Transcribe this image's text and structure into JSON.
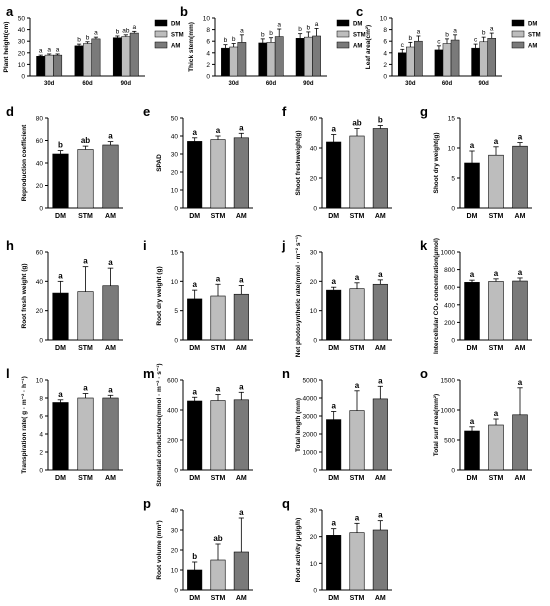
{
  "figure": {
    "colors": {
      "DM": "#000000",
      "STM": "#bdbdbd",
      "AM": "#7a7a7a",
      "errorbar": "#000000",
      "axis": "#000000"
    }
  },
  "chart_data": [
    {
      "id": "a",
      "type": "bar",
      "panel_label": "a",
      "ylabel": "Plant height(cm)",
      "ylim": [
        0,
        50
      ],
      "yticks": [
        0,
        10,
        20,
        30,
        40,
        50
      ],
      "categories": [
        "30d",
        "60d",
        "90d"
      ],
      "series": [
        {
          "name": "DM",
          "values": [
            17,
            26,
            33
          ],
          "errors": [
            1,
            1.5,
            1.5
          ],
          "letters": [
            "a",
            "b",
            "b"
          ]
        },
        {
          "name": "STM",
          "values": [
            18,
            28,
            34
          ],
          "errors": [
            1,
            1.5,
            1.5
          ],
          "letters": [
            "a",
            "b",
            "ab"
          ]
        },
        {
          "name": "AM",
          "values": [
            18,
            32,
            37
          ],
          "errors": [
            1,
            1.5,
            1.5
          ],
          "letters": [
            "a",
            "a",
            "a"
          ]
        }
      ],
      "legend": [
        "DM",
        "STM",
        "AM"
      ],
      "legend_position": "top-right"
    },
    {
      "id": "b",
      "type": "bar",
      "panel_label": "b",
      "ylabel": "Thick stem(mm)",
      "ylim": [
        0,
        10
      ],
      "yticks": [
        0,
        2,
        4,
        6,
        8,
        10
      ],
      "categories": [
        "30d",
        "60d",
        "90d"
      ],
      "series": [
        {
          "name": "DM",
          "values": [
            4.8,
            5.7,
            6.5
          ],
          "errors": [
            0.6,
            0.7,
            0.8
          ],
          "letters": [
            "b",
            "b",
            "b"
          ]
        },
        {
          "name": "STM",
          "values": [
            5.0,
            5.8,
            6.7
          ],
          "errors": [
            0.6,
            0.8,
            0.9
          ],
          "letters": [
            "b",
            "b",
            "b"
          ]
        },
        {
          "name": "AM",
          "values": [
            5.8,
            6.8,
            6.9
          ],
          "errors": [
            1.3,
            1.3,
            1.3
          ],
          "letters": [
            "a",
            "a",
            "a"
          ]
        }
      ],
      "legend": [
        "DM",
        "STM",
        "AM"
      ],
      "legend_position": "right"
    },
    {
      "id": "c",
      "type": "bar",
      "panel_label": "c",
      "ylabel": "Leaf area(cm²)",
      "ylim": [
        0,
        10
      ],
      "yticks": [
        0,
        2,
        4,
        6,
        8,
        10
      ],
      "categories": [
        "30d",
        "60d",
        "90d"
      ],
      "series": [
        {
          "name": "DM",
          "values": [
            4.0,
            4.5,
            4.8
          ],
          "errors": [
            0.6,
            0.7,
            0.7
          ],
          "letters": [
            "c",
            "c",
            "c"
          ]
        },
        {
          "name": "STM",
          "values": [
            5.0,
            5.6,
            5.9
          ],
          "errors": [
            0.8,
            0.8,
            0.8
          ],
          "letters": [
            "b",
            "b",
            "b"
          ]
        },
        {
          "name": "AM",
          "values": [
            6.0,
            6.2,
            6.5
          ],
          "errors": [
            0.9,
            0.9,
            0.9
          ],
          "letters": [
            "a",
            "a",
            "a"
          ]
        }
      ],
      "legend": [
        "DM",
        "STM",
        "AM"
      ],
      "legend_position": "right"
    },
    {
      "id": "d",
      "type": "bar",
      "panel_label": "d",
      "ylabel": "Reproduction coefficient",
      "ylim": [
        0,
        80
      ],
      "yticks": [
        0,
        20,
        40,
        60,
        80
      ],
      "categories": [
        "DM",
        "STM",
        "AM"
      ],
      "values": [
        48,
        52,
        56
      ],
      "errors": [
        3,
        3,
        3
      ],
      "letters": [
        "b",
        "ab",
        "a"
      ]
    },
    {
      "id": "e",
      "type": "bar",
      "panel_label": "e",
      "ylabel": "SPAD",
      "ylim": [
        0,
        50
      ],
      "yticks": [
        0,
        10,
        20,
        30,
        40,
        50
      ],
      "categories": [
        "DM",
        "STM",
        "AM"
      ],
      "values": [
        37,
        38,
        39
      ],
      "errors": [
        2,
        2,
        2.5
      ],
      "letters": [
        "a",
        "a",
        "a"
      ]
    },
    {
      "id": "f",
      "type": "bar",
      "panel_label": "f",
      "ylabel": "Shoot freshweight(g)",
      "ylim": [
        0,
        60
      ],
      "yticks": [
        0,
        20,
        40,
        60
      ],
      "categories": [
        "DM",
        "STM",
        "AM"
      ],
      "values": [
        44,
        48,
        53
      ],
      "errors": [
        5,
        5,
        2
      ],
      "letters": [
        "a",
        "ab",
        "b"
      ]
    },
    {
      "id": "g",
      "type": "bar",
      "panel_label": "g",
      "ylabel": "Shoot dry weight(g)",
      "ylim": [
        0,
        15
      ],
      "yticks": [
        0,
        5,
        10,
        15
      ],
      "categories": [
        "DM",
        "STM",
        "AM"
      ],
      "values": [
        7.5,
        8.8,
        10.3
      ],
      "errors": [
        2.0,
        1.4,
        0.6
      ],
      "letters": [
        "a",
        "a",
        "a"
      ]
    },
    {
      "id": "h",
      "type": "bar",
      "panel_label": "h",
      "ylabel": "Root fresh weight (g)",
      "ylim": [
        0,
        60
      ],
      "yticks": [
        0,
        20,
        40,
        60
      ],
      "categories": [
        "DM",
        "STM",
        "AM"
      ],
      "values": [
        32,
        33,
        37
      ],
      "errors": [
        8,
        17,
        12
      ],
      "letters": [
        "a",
        "a",
        "a"
      ]
    },
    {
      "id": "i",
      "type": "bar",
      "panel_label": "i",
      "ylabel": "Root dry weight (g)",
      "ylim": [
        0,
        15
      ],
      "yticks": [
        0,
        5,
        10,
        15
      ],
      "categories": [
        "DM",
        "STM",
        "AM"
      ],
      "values": [
        7.0,
        7.5,
        7.8
      ],
      "errors": [
        1.5,
        2.0,
        1.5
      ],
      "letters": [
        "a",
        "a",
        "a"
      ]
    },
    {
      "id": "j",
      "type": "bar",
      "panel_label": "j",
      "ylabel": "Net photosynthetic rate(mmol · m⁻² s⁻¹)",
      "ylim": [
        0,
        30
      ],
      "yticks": [
        0,
        10,
        20,
        30
      ],
      "categories": [
        "DM",
        "STM",
        "AM"
      ],
      "values": [
        17,
        17.5,
        19
      ],
      "errors": [
        1,
        2,
        1.5
      ],
      "letters": [
        "a",
        "a",
        "a"
      ]
    },
    {
      "id": "k",
      "type": "bar",
      "panel_label": "k",
      "ylabel": "Intercellular CO₂ concentration(μmol)",
      "ylim": [
        0,
        1000
      ],
      "yticks": [
        0,
        200,
        400,
        600,
        800,
        1000
      ],
      "categories": [
        "DM",
        "STM",
        "AM"
      ],
      "values": [
        655,
        665,
        670
      ],
      "errors": [
        25,
        30,
        35
      ],
      "letters": [
        "a",
        "a",
        "a"
      ]
    },
    {
      "id": "l",
      "type": "bar",
      "panel_label": "l",
      "ylabel": "Transpiration rate( g · m⁻² · h⁻¹)",
      "ylim": [
        0,
        10
      ],
      "yticks": [
        0,
        2,
        4,
        6,
        8,
        10
      ],
      "categories": [
        "DM",
        "STM",
        "AM"
      ],
      "values": [
        7.5,
        8.0,
        8.0
      ],
      "errors": [
        0.3,
        0.5,
        0.3
      ],
      "letters": [
        "a",
        "a",
        "a"
      ]
    },
    {
      "id": "m",
      "type": "bar",
      "panel_label": "m",
      "ylabel": "Stomatal conductance(mmol · m⁻² · s⁻¹)",
      "ylim": [
        0,
        600
      ],
      "yticks": [
        0,
        200,
        400,
        600
      ],
      "categories": [
        "DM",
        "STM",
        "AM"
      ],
      "values": [
        460,
        463,
        468
      ],
      "errors": [
        25,
        40,
        50
      ],
      "letters": [
        "a",
        "a",
        "a"
      ]
    },
    {
      "id": "n",
      "type": "bar",
      "panel_label": "n",
      "ylabel": "Total length (mm)",
      "ylim": [
        0,
        5000
      ],
      "yticks": [
        0,
        1000,
        2000,
        3000,
        4000,
        5000
      ],
      "categories": [
        "DM",
        "STM",
        "AM"
      ],
      "values": [
        2800,
        3300,
        3950
      ],
      "errors": [
        450,
        1100,
        700
      ],
      "letters": [
        "a",
        "a",
        "a"
      ]
    },
    {
      "id": "o",
      "type": "bar",
      "panel_label": "o",
      "ylabel": "Total surf area(mm²)",
      "ylim": [
        0,
        1500
      ],
      "yticks": [
        0,
        500,
        1000,
        1500
      ],
      "categories": [
        "DM",
        "STM",
        "AM"
      ],
      "values": [
        650,
        750,
        920
      ],
      "errors": [
        70,
        100,
        450
      ],
      "letters": [
        "a",
        "a",
        "a"
      ]
    },
    {
      "id": "p",
      "type": "bar",
      "panel_label": "p",
      "ylabel": "Root volume (mm³)",
      "ylim": [
        0,
        40
      ],
      "yticks": [
        0,
        10,
        20,
        30,
        40
      ],
      "categories": [
        "DM",
        "STM",
        "AM"
      ],
      "values": [
        10,
        15,
        19
      ],
      "errors": [
        4,
        8,
        17
      ],
      "letters": [
        "b",
        "ab",
        "a"
      ]
    },
    {
      "id": "q",
      "type": "bar",
      "panel_label": "q",
      "ylabel": "Root activity (μg/g/h)",
      "ylim": [
        0,
        30
      ],
      "yticks": [
        0,
        10,
        20,
        30
      ],
      "categories": [
        "DM",
        "STM",
        "AM"
      ],
      "values": [
        20.5,
        21.5,
        22.5
      ],
      "errors": [
        2.5,
        3.5,
        3.5
      ],
      "letters": [
        "a",
        "a",
        "a"
      ]
    }
  ]
}
